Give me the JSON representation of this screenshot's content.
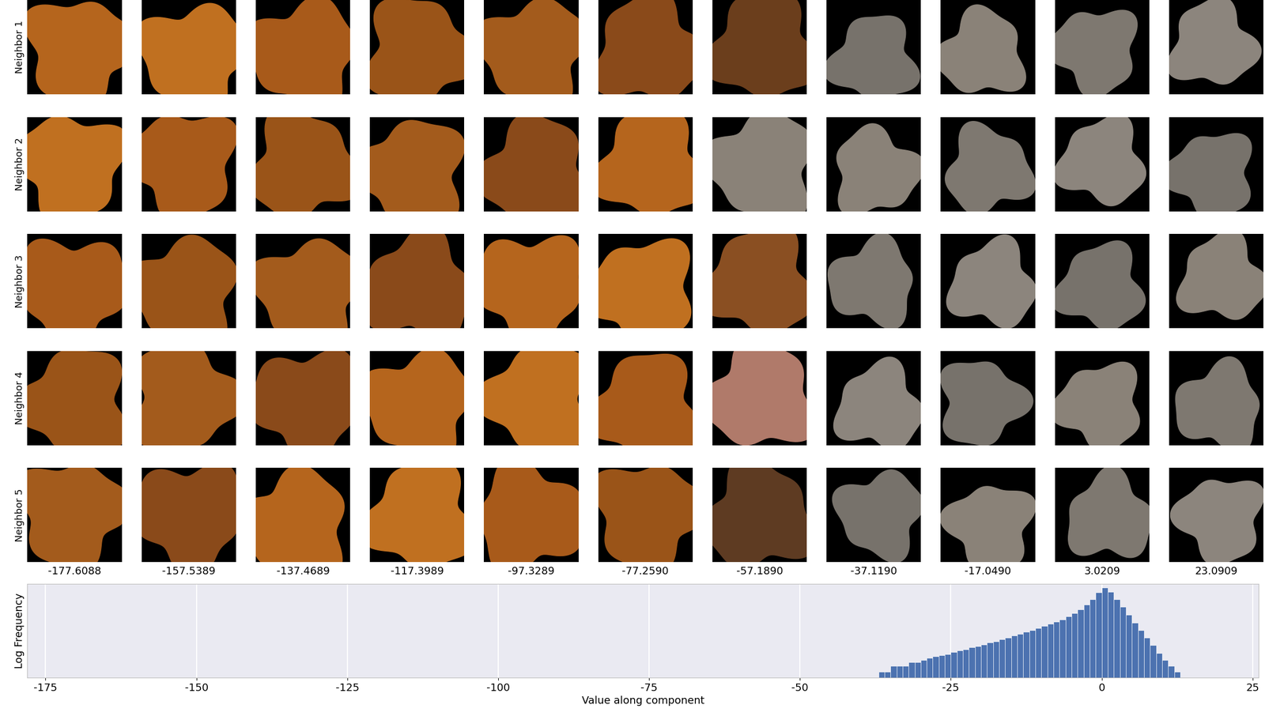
{
  "chart_data": {
    "type": "histogram",
    "row_labels": [
      "Neighbor 1",
      "Neighbor 2",
      "Neighbor 3",
      "Neighbor 4",
      "Neighbor 5"
    ],
    "columns": [
      {
        "value": -177.6088,
        "label": "-177.6088"
      },
      {
        "value": -157.5389,
        "label": "-157.5389"
      },
      {
        "value": -137.4689,
        "label": "-137.4689"
      },
      {
        "value": -117.3989,
        "label": "-117.3989"
      },
      {
        "value": -97.3289,
        "label": "-97.3289"
      },
      {
        "value": -77.259,
        "label": "-77.2590"
      },
      {
        "value": -57.189,
        "label": "-57.1890"
      },
      {
        "value": -37.119,
        "label": "-37.1190"
      },
      {
        "value": -17.049,
        "label": "-17.0490"
      },
      {
        "value": 3.0209,
        "label": "3.0209"
      },
      {
        "value": 23.0909,
        "label": "23.0909"
      }
    ],
    "x_label": "Value along component",
    "y_label": "Log Frequency",
    "bins": [
      -37,
      -36,
      -35,
      -34,
      -33,
      -32,
      -31,
      -30,
      -29,
      -28,
      -27,
      -26,
      -25,
      -24,
      -23,
      -22,
      -21,
      -20,
      -19,
      -18,
      -17,
      -16,
      -15,
      -14,
      -13,
      -12,
      -11,
      -10,
      -9,
      -8,
      -7,
      -6,
      -5,
      -4,
      -3,
      -2,
      -1,
      0,
      1,
      2,
      3,
      4,
      5,
      6,
      7,
      8,
      9,
      10,
      11,
      12,
      13
    ],
    "counts": [
      1,
      1,
      2,
      2,
      2,
      3,
      3,
      4,
      5,
      6,
      7,
      8,
      10,
      12,
      14,
      17,
      20,
      24,
      30,
      36,
      45,
      55,
      70,
      85,
      105,
      130,
      165,
      210,
      270,
      350,
      470,
      650,
      950,
      1500,
      2600,
      5000,
      11000,
      20000,
      12000,
      5000,
      2000,
      800,
      320,
      130,
      55,
      22,
      9,
      4,
      2,
      1
    ],
    "color": "#4c72b0",
    "xlim": [
      -178,
      26
    ],
    "xticks": [
      -175,
      -150,
      -125,
      -100,
      -75,
      -50,
      -25,
      0,
      25
    ],
    "ylim": [
      0.5,
      30000
    ],
    "log": "y",
    "grid": true,
    "tick_labels": "x"
  }
}
